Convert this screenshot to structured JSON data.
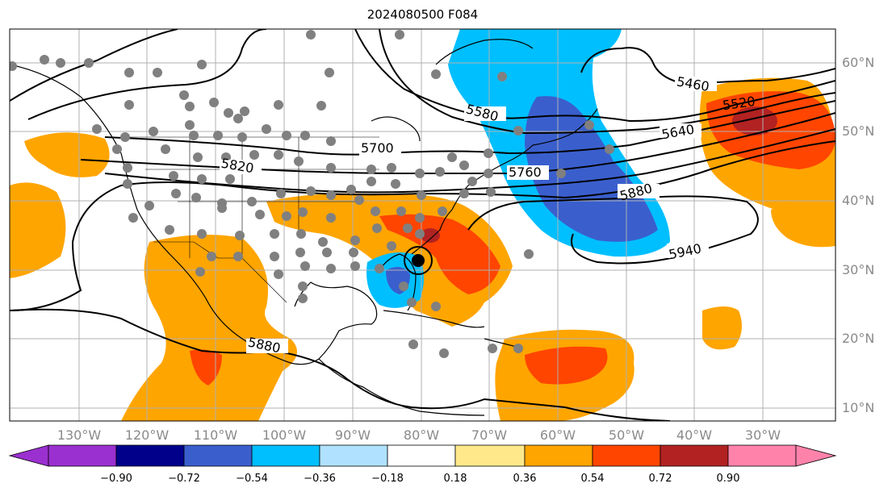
{
  "title": "2024080500 F084",
  "map": {
    "lat_labels": [
      "60°N",
      "50°N",
      "40°N",
      "30°N",
      "20°N",
      "10°N"
    ],
    "lon_labels": [
      "130°W",
      "120°W",
      "110°W",
      "100°W",
      "90°W",
      "80°W",
      "70°W",
      "60°W",
      "50°W",
      "40°W",
      "30°W"
    ],
    "contour_labels": [
      "5460",
      "5520",
      "5580",
      "5640",
      "5700",
      "5760",
      "5820",
      "5880",
      "5880",
      "5940"
    ],
    "storm_marker": "hurricane-center",
    "colors": {
      "land_line": "#000000",
      "grid": "#b0b0b0",
      "station": "#808080"
    }
  },
  "colorbar": {
    "ticks": [
      "−0.90",
      "−0.72",
      "−0.54",
      "−0.36",
      "−0.18",
      "0.18",
      "0.36",
      "0.54",
      "0.72",
      "0.90"
    ],
    "colors": [
      "#9b30d0",
      "#00008b",
      "#3a5fcd",
      "#00bfff",
      "#b0e2ff",
      "#ffffff",
      "#ffe88a",
      "#ffa500",
      "#ff4500",
      "#b22222",
      "#ff82ab"
    ]
  }
}
